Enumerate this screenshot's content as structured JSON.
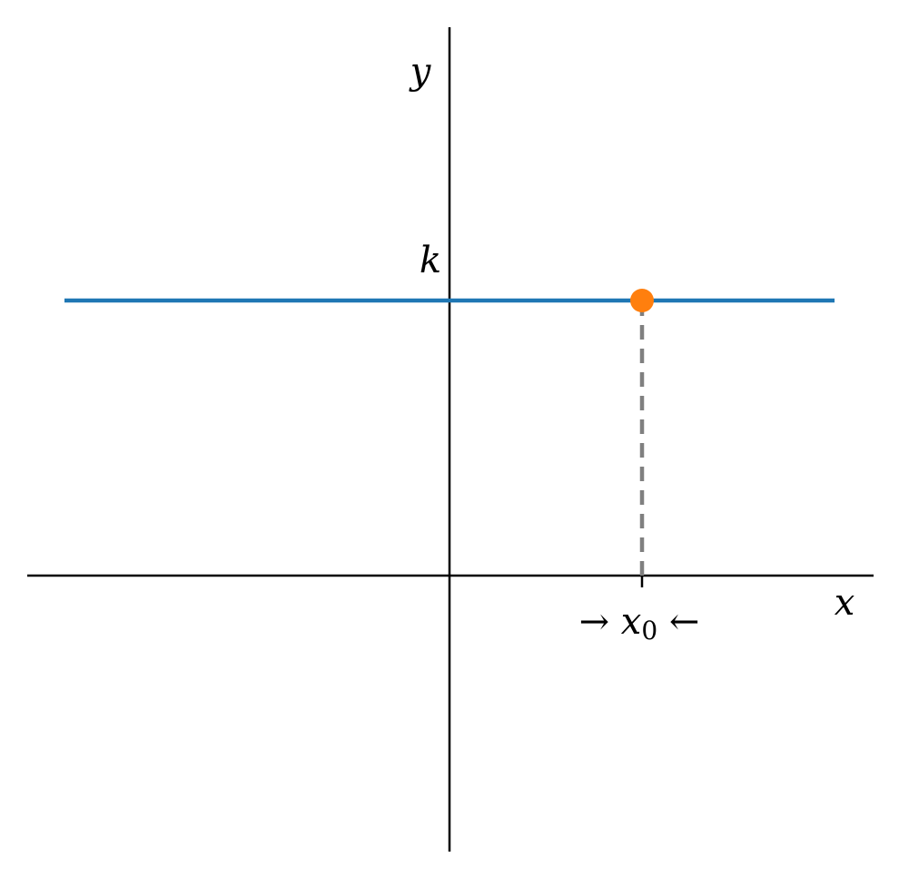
{
  "chart_data": {
    "type": "line",
    "x_axis_label": "x",
    "y_axis_label": "y",
    "y_tick_label": "k",
    "x_tick_label": {
      "left_arrow": "→",
      "symbol": "x",
      "subscript": "0",
      "right_arrow": "←"
    },
    "xlim": [
      -2.2,
      2.2
    ],
    "ylim": [
      -1.0,
      2.0
    ],
    "series": [
      {
        "color": "#1f77b4",
        "x": [
          -2,
          2
        ],
        "y": [
          1,
          1
        ]
      }
    ],
    "highlight_point": {
      "x": 1,
      "y": 1,
      "color": "#ff7f0e"
    },
    "guide_line": {
      "style": "dashed",
      "color": "#808080",
      "from": [
        1,
        0
      ],
      "to": [
        1,
        1
      ]
    },
    "grid": false
  }
}
